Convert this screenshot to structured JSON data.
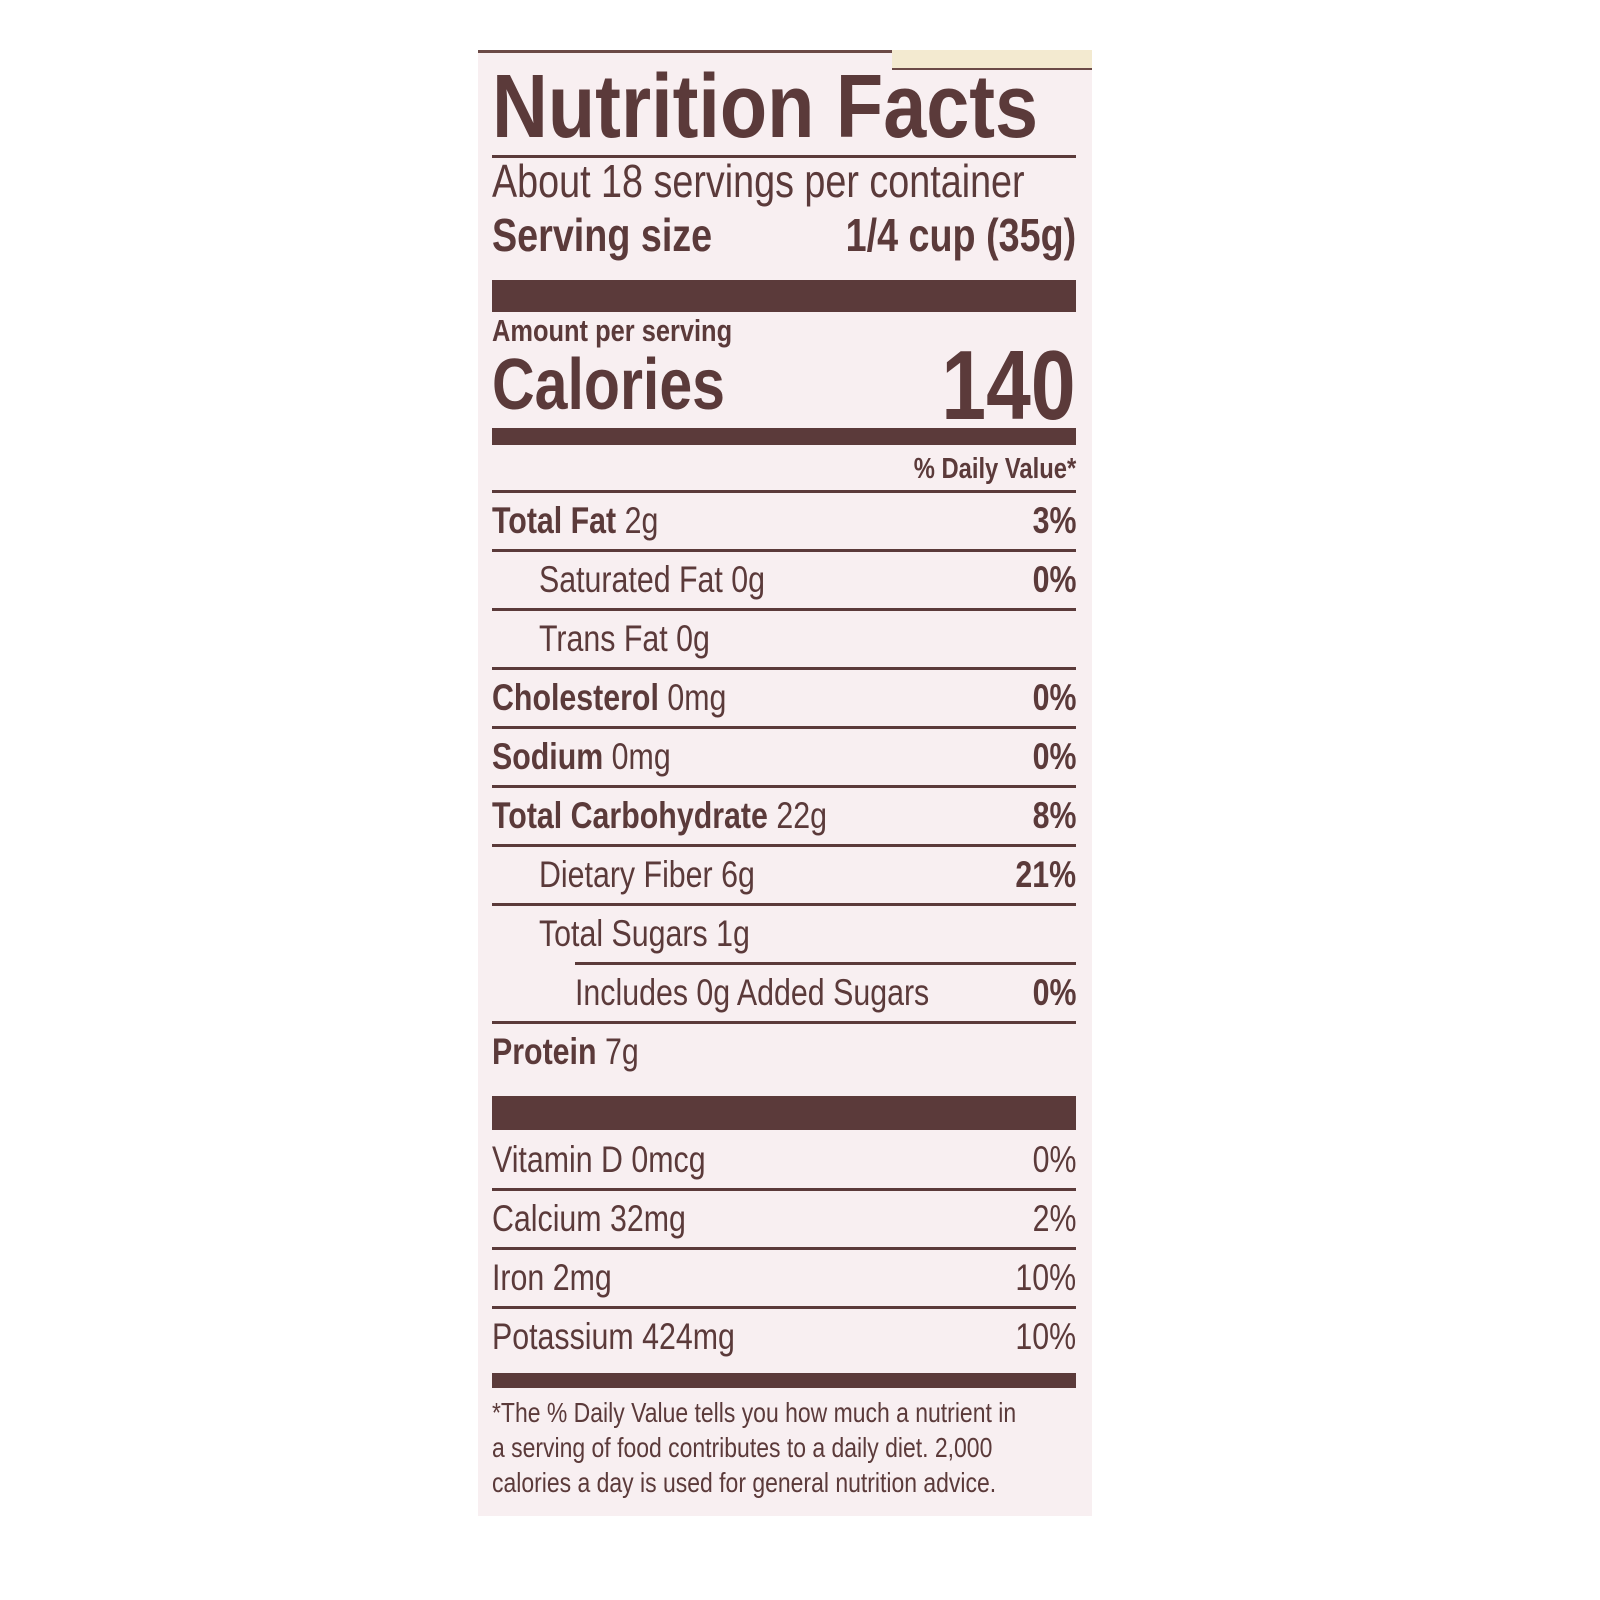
{
  "title": "Nutrition Facts",
  "servings": "About 18 servings per container",
  "serving_size": {
    "label": "Serving size",
    "value": "1/4 cup (35g)"
  },
  "amount_per_serving": "Amount per serving",
  "calories": {
    "label": "Calories",
    "value": "140"
  },
  "daily_value_header": "% Daily Value*",
  "nutrients": [
    {
      "name": "Total Fat",
      "amount": "2g",
      "dv": "3%"
    },
    {
      "name": "Saturated Fat",
      "amount": "0g",
      "dv": "0%"
    },
    {
      "name": "Trans Fat",
      "amount": "0g",
      "dv": ""
    },
    {
      "name": "Cholesterol",
      "amount": "0mg",
      "dv": "0%"
    },
    {
      "name": "Sodium",
      "amount": "0mg",
      "dv": "0%"
    },
    {
      "name": "Total Carbohydrate",
      "amount": "22g",
      "dv": "8%"
    },
    {
      "name": "Dietary Fiber",
      "amount": "6g",
      "dv": "21%"
    },
    {
      "name": "Total Sugars",
      "amount": "1g",
      "dv": ""
    },
    {
      "name": "Includes 0g Added Sugars",
      "amount": "",
      "dv": "0%"
    },
    {
      "name": "Protein",
      "amount": "7g",
      "dv": ""
    }
  ],
  "vitamins": [
    {
      "name": "Vitamin D",
      "amount": "0mcg",
      "dv": "0%"
    },
    {
      "name": "Calcium",
      "amount": "32mg",
      "dv": "2%"
    },
    {
      "name": "Iron",
      "amount": "2mg",
      "dv": "10%"
    },
    {
      "name": "Potassium",
      "amount": "424mg",
      "dv": "10%"
    }
  ],
  "footnote": [
    "*The % Daily Value tells you how much a nutrient in",
    "a serving of food contributes to a daily diet. 2,000",
    "calories a day is used for general nutrition advice."
  ],
  "colors": {
    "ink": "#5b3a3a",
    "background": "#f8eff1"
  }
}
